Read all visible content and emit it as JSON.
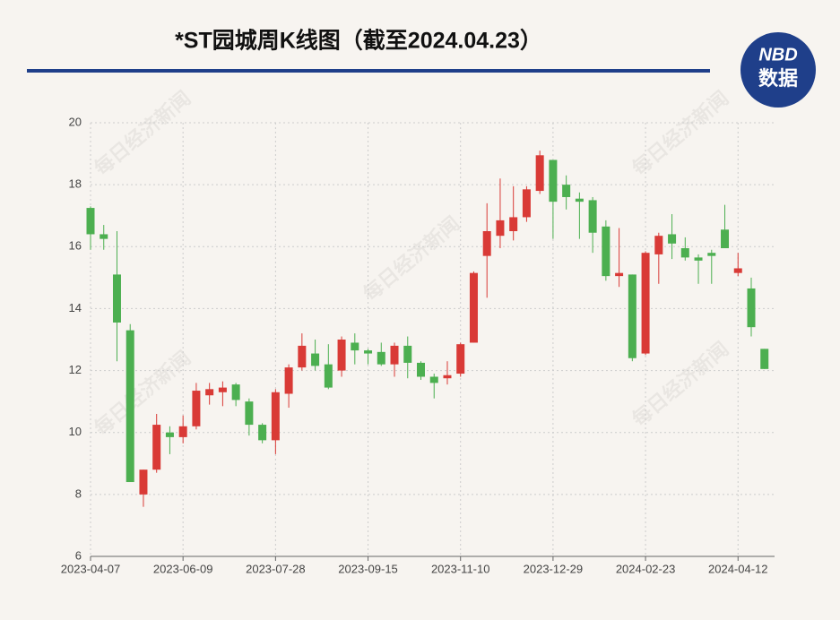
{
  "chart_data": {
    "type": "candlestick",
    "title": "*ST园城周K线图（截至2024.04.23）",
    "logo": [
      "NBD",
      "数据"
    ],
    "watermark": "每日经济新闻",
    "categories": [
      "2023-04-07",
      null,
      null,
      null,
      null,
      null,
      null,
      "2023-06-09",
      null,
      null,
      null,
      null,
      null,
      null,
      "2023-07-28",
      null,
      null,
      null,
      null,
      null,
      null,
      "2023-09-15",
      null,
      null,
      null,
      null,
      null,
      null,
      "2023-11-10",
      null,
      null,
      null,
      null,
      null,
      null,
      "2023-12-29",
      null,
      null,
      null,
      null,
      null,
      null,
      "2024-02-23",
      null,
      null,
      null,
      null,
      null,
      null,
      "2024-04-12",
      null,
      null
    ],
    "open": [
      17.25,
      16.4,
      15.1,
      13.3,
      8.0,
      8.8,
      10.0,
      9.85,
      10.2,
      11.2,
      11.3,
      11.55,
      11.0,
      10.25,
      9.75,
      11.25,
      12.1,
      12.55,
      12.2,
      12.0,
      12.9,
      12.65,
      12.6,
      12.2,
      12.8,
      12.25,
      11.8,
      11.75,
      11.9,
      12.9,
      15.7,
      16.35,
      16.5,
      16.95,
      17.8,
      18.8,
      18.0,
      17.55,
      17.5,
      16.65,
      15.05,
      15.1,
      12.55,
      15.75,
      16.4,
      15.95,
      15.65,
      15.8,
      16.55,
      15.15,
      14.65,
      12.7
    ],
    "high": [
      17.3,
      16.7,
      16.5,
      13.5,
      8.8,
      10.6,
      10.2,
      10.55,
      11.6,
      11.6,
      11.65,
      11.6,
      11.1,
      10.3,
      11.4,
      12.2,
      13.2,
      13.0,
      12.85,
      13.1,
      13.2,
      12.7,
      12.9,
      12.9,
      13.1,
      12.3,
      11.9,
      12.3,
      12.9,
      15.2,
      17.4,
      18.2,
      17.95,
      17.95,
      19.1,
      18.8,
      18.3,
      17.75,
      17.6,
      16.85,
      16.6,
      15.1,
      15.85,
      16.45,
      17.05,
      16.3,
      15.75,
      15.9,
      17.35,
      15.8,
      15.0,
      12.7
    ],
    "low": [
      15.9,
      15.9,
      12.3,
      8.4,
      7.6,
      8.7,
      9.3,
      9.65,
      10.1,
      10.9,
      10.85,
      10.85,
      9.9,
      9.65,
      9.3,
      10.8,
      12.0,
      12.0,
      11.4,
      11.8,
      12.2,
      12.2,
      12.15,
      11.8,
      11.75,
      11.7,
      11.1,
      11.55,
      11.8,
      12.9,
      14.35,
      15.95,
      16.2,
      16.8,
      17.7,
      16.25,
      17.2,
      16.25,
      15.8,
      14.9,
      14.7,
      12.3,
      12.5,
      14.8,
      15.6,
      15.55,
      14.8,
      14.8,
      15.95,
      15.05,
      13.1,
      12.05
    ],
    "close": [
      16.4,
      16.25,
      13.55,
      8.4,
      8.8,
      10.25,
      9.85,
      10.2,
      11.35,
      11.4,
      11.45,
      11.05,
      10.25,
      9.75,
      11.3,
      12.1,
      12.8,
      12.15,
      11.45,
      13.0,
      12.65,
      12.55,
      12.2,
      12.8,
      12.25,
      11.8,
      11.6,
      11.85,
      12.85,
      15.15,
      16.5,
      16.85,
      16.95,
      17.85,
      18.95,
      17.45,
      17.6,
      17.45,
      16.45,
      15.05,
      15.15,
      12.4,
      15.8,
      16.35,
      16.1,
      15.65,
      15.55,
      15.7,
      15.95,
      15.3,
      13.4,
      12.05
    ],
    "up_color": "#d93a36",
    "down_color": "#4caf50",
    "ylim": [
      6,
      20
    ],
    "yticks": [
      6,
      8,
      10,
      12,
      14,
      16,
      18,
      20
    ],
    "grid": true
  }
}
